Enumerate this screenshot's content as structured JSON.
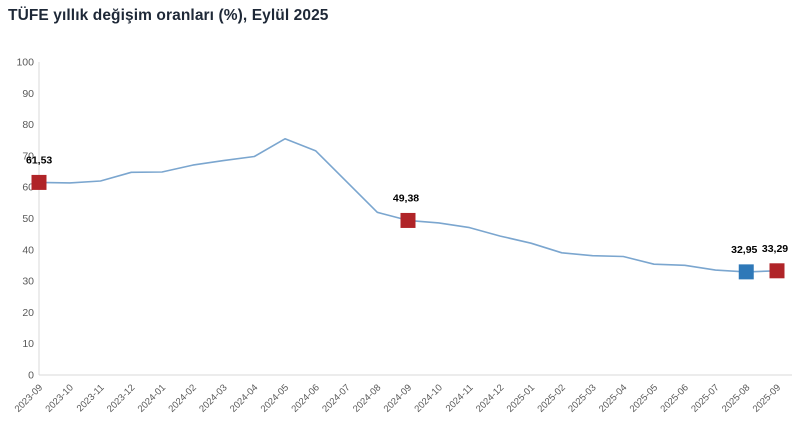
{
  "title": "TÜFE yıllık değişim oranları (%), Eylül 2025",
  "colors": {
    "line": "#7ba6cf",
    "marker_red": "#b02428",
    "marker_blue": "#2e78b8",
    "axis_line": "#d9d9d9",
    "tick_text": "#595959",
    "title_text": "#1e2837",
    "data_label_text": "#000000",
    "background": "#ffffff"
  },
  "chart_data": {
    "type": "line",
    "title": "TÜFE yıllık değişim oranları (%), Eylül 2025",
    "xlabel": "",
    "ylabel": "",
    "ylim": [
      0,
      100
    ],
    "yticks": [
      0,
      10,
      20,
      30,
      40,
      50,
      60,
      70,
      80,
      90,
      100
    ],
    "grid": false,
    "legend_position": "none",
    "x": [
      "2023-09",
      "2023-10",
      "2023-11",
      "2023-12",
      "2024-01",
      "2024-02",
      "2024-03",
      "2024-04",
      "2024-05",
      "2024-06",
      "2024-07",
      "2024-08",
      "2024-09",
      "2024-10",
      "2024-11",
      "2024-12",
      "2025-01",
      "2025-02",
      "2025-03",
      "2025-04",
      "2025-05",
      "2025-06",
      "2025-07",
      "2025-08",
      "2025-09"
    ],
    "values": [
      61.53,
      61.36,
      61.98,
      64.77,
      64.86,
      67.07,
      68.5,
      69.8,
      75.45,
      71.6,
      61.78,
      51.97,
      49.38,
      48.58,
      47.09,
      44.38,
      42.12,
      39.05,
      38.1,
      37.86,
      35.41,
      35.05,
      33.52,
      32.95,
      33.29
    ],
    "annotations": [
      {
        "x": "2023-09",
        "text": "61,53",
        "marker_color": "red"
      },
      {
        "x": "2024-09",
        "text": "49,38",
        "marker_color": "red"
      },
      {
        "x": "2025-08",
        "text": "32,95",
        "marker_color": "blue"
      },
      {
        "x": "2025-09",
        "text": "33,29",
        "marker_color": "red"
      }
    ]
  }
}
